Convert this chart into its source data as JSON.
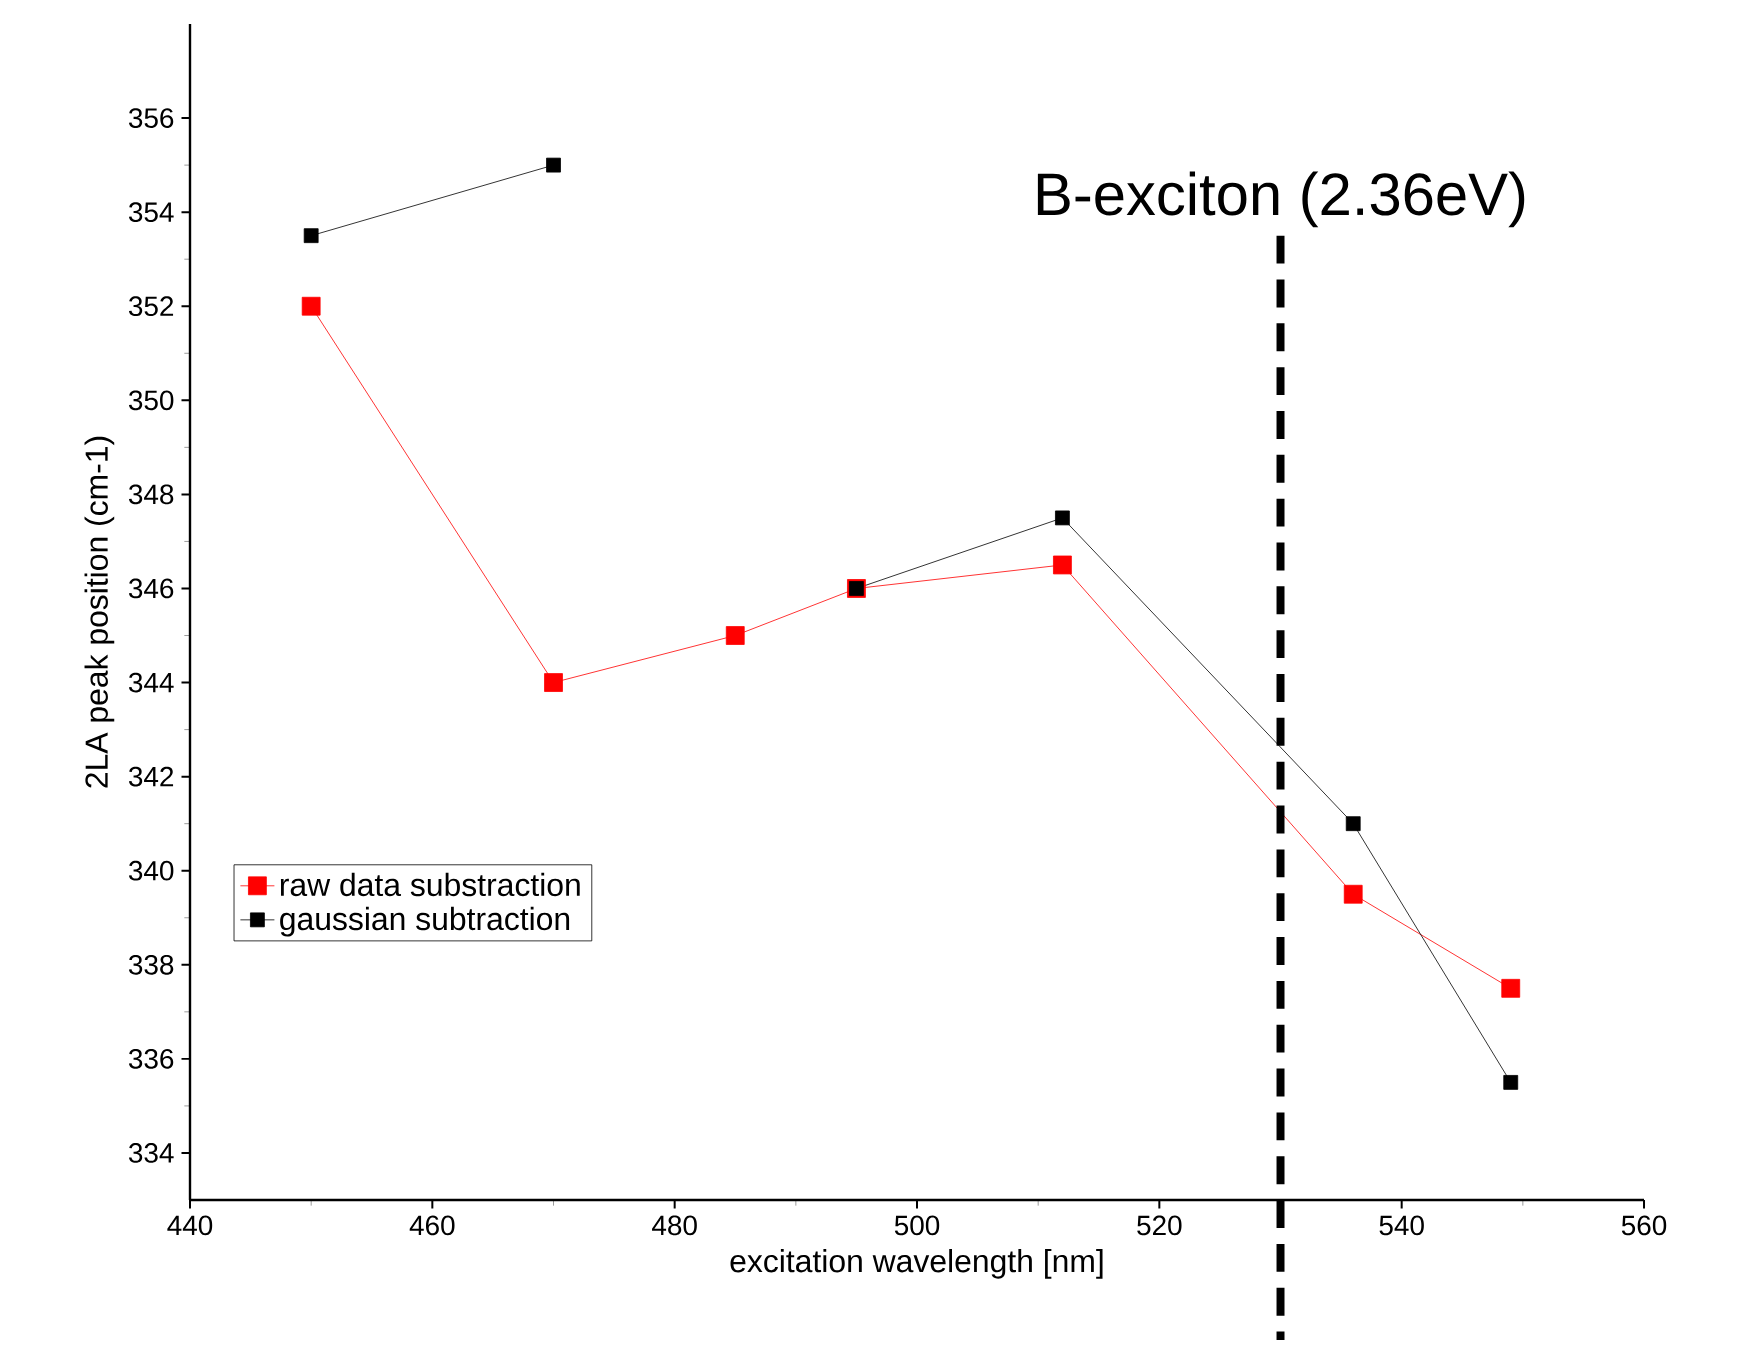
{
  "chart_data": {
    "type": "line",
    "xlabel": "excitation wavelength [nm]",
    "ylabel": "2LA peak position (cm-1)",
    "x": [
      450,
      470,
      485,
      495,
      512,
      536,
      549
    ],
    "series": [
      {
        "name": "raw data substraction",
        "color": "#ff0000",
        "values": [
          352,
          344,
          345,
          346,
          346.5,
          339.5,
          337.5
        ]
      },
      {
        "name": "gaussian subtraction",
        "color": "#000000",
        "values": [
          353.5,
          355,
          null,
          346,
          347.5,
          341,
          335.5
        ]
      }
    ],
    "xlim": [
      440,
      560
    ],
    "ylim": [
      333,
      358
    ],
    "xticks": [
      440,
      460,
      480,
      500,
      520,
      540,
      560
    ],
    "yticks": [
      334,
      336,
      338,
      340,
      342,
      344,
      346,
      348,
      350,
      352,
      354,
      356
    ],
    "ref_lines": [
      {
        "axis": "x",
        "value": 530,
        "label": "B-exciton (2.36eV)",
        "color": "#000000",
        "line_style": "dashed"
      }
    ],
    "legend": "bottom left",
    "marker": "square",
    "line_style": "solid",
    "grid": false
  }
}
